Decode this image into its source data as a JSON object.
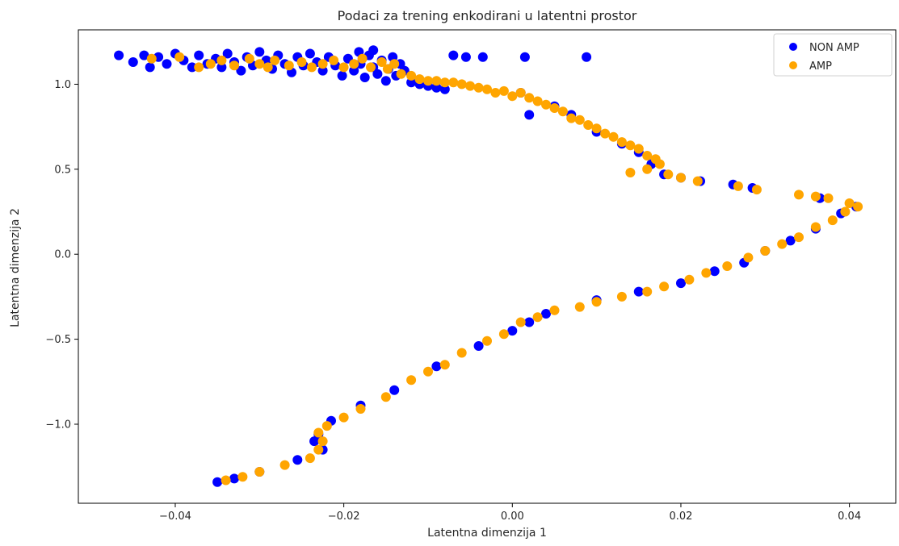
{
  "chart_data": {
    "type": "scatter",
    "title": "Podaci za trening enkodirani u latentni prostor",
    "xlabel": "Latentna dimenzija 1",
    "ylabel": "Latentna dimenzija 2",
    "xlim": [
      -0.0515,
      0.0455
    ],
    "ylim": [
      -1.465,
      1.32
    ],
    "xticks": [
      -0.04,
      -0.02,
      0.0,
      0.02,
      0.04
    ],
    "xtick_labels": [
      "−0.04",
      "−0.02",
      "0.00",
      "0.02",
      "0.04"
    ],
    "yticks": [
      -1.0,
      -0.5,
      0.0,
      0.5,
      1.0
    ],
    "ytick_labels": [
      "−1.0",
      "−0.5",
      "0.0",
      "0.5",
      "1.0"
    ],
    "grid": false,
    "legend_position": "top-right",
    "series": [
      {
        "name": "NON AMP",
        "color": "#0000ff",
        "points": [
          [
            -0.0467,
            1.17
          ],
          [
            -0.045,
            1.13
          ],
          [
            -0.0437,
            1.17
          ],
          [
            -0.043,
            1.1
          ],
          [
            -0.042,
            1.16
          ],
          [
            -0.041,
            1.12
          ],
          [
            -0.04,
            1.18
          ],
          [
            -0.039,
            1.14
          ],
          [
            -0.038,
            1.1
          ],
          [
            -0.0372,
            1.17
          ],
          [
            -0.0362,
            1.12
          ],
          [
            -0.0352,
            1.15
          ],
          [
            -0.0345,
            1.1
          ],
          [
            -0.0338,
            1.18
          ],
          [
            -0.033,
            1.13
          ],
          [
            -0.0322,
            1.08
          ],
          [
            -0.0315,
            1.16
          ],
          [
            -0.0308,
            1.11
          ],
          [
            -0.03,
            1.19
          ],
          [
            -0.0292,
            1.14
          ],
          [
            -0.0285,
            1.09
          ],
          [
            -0.0278,
            1.17
          ],
          [
            -0.027,
            1.12
          ],
          [
            -0.0262,
            1.07
          ],
          [
            -0.0255,
            1.16
          ],
          [
            -0.0248,
            1.11
          ],
          [
            -0.024,
            1.18
          ],
          [
            -0.0232,
            1.13
          ],
          [
            -0.0225,
            1.08
          ],
          [
            -0.0218,
            1.16
          ],
          [
            -0.021,
            1.11
          ],
          [
            -0.0202,
            1.05
          ],
          [
            -0.0195,
            1.15
          ],
          [
            -0.0188,
            1.08
          ],
          [
            -0.018,
            1.12
          ],
          [
            -0.0175,
            1.04
          ],
          [
            -0.017,
            1.17
          ],
          [
            -0.0165,
            1.1
          ],
          [
            -0.016,
            1.06
          ],
          [
            -0.0155,
            1.14
          ],
          [
            -0.015,
            1.02
          ],
          [
            -0.0147,
            1.09
          ],
          [
            -0.0142,
            1.16
          ],
          [
            -0.0138,
            1.05
          ],
          [
            -0.0133,
            1.12
          ],
          [
            -0.0128,
            1.08
          ],
          [
            -0.0165,
            1.2
          ],
          [
            -0.0182,
            1.19
          ],
          [
            -0.012,
            1.01
          ],
          [
            -0.011,
            1.0
          ],
          [
            -0.01,
            0.99
          ],
          [
            -0.009,
            0.98
          ],
          [
            -0.008,
            0.97
          ],
          [
            -0.007,
            1.17
          ],
          [
            -0.0055,
            1.16
          ],
          [
            -0.0035,
            1.16
          ],
          [
            0.0015,
            1.16
          ],
          [
            0.0088,
            1.16
          ],
          [
            0.001,
            0.95
          ],
          [
            0.002,
            0.82
          ],
          [
            0.005,
            0.87
          ],
          [
            0.007,
            0.82
          ],
          [
            0.01,
            0.72
          ],
          [
            0.013,
            0.65
          ],
          [
            0.015,
            0.6
          ],
          [
            0.017,
            0.55
          ],
          [
            0.0165,
            0.53
          ],
          [
            0.018,
            0.47
          ],
          [
            0.02,
            0.45
          ],
          [
            0.0223,
            0.43
          ],
          [
            0.0262,
            0.41
          ],
          [
            0.0285,
            0.39
          ],
          [
            0.0365,
            0.33
          ],
          [
            0.0408,
            0.28
          ],
          [
            0.039,
            0.24
          ],
          [
            0.036,
            0.15
          ],
          [
            0.033,
            0.08
          ],
          [
            0.03,
            0.02
          ],
          [
            0.0275,
            -0.05
          ],
          [
            0.024,
            -0.1
          ],
          [
            0.02,
            -0.17
          ],
          [
            0.015,
            -0.22
          ],
          [
            0.01,
            -0.27
          ],
          [
            0.004,
            -0.35
          ],
          [
            0.002,
            -0.4
          ],
          [
            0.0,
            -0.45
          ],
          [
            -0.004,
            -0.54
          ],
          [
            -0.009,
            -0.66
          ],
          [
            -0.014,
            -0.8
          ],
          [
            -0.018,
            -0.89
          ],
          [
            -0.0215,
            -0.98
          ],
          [
            -0.023,
            -1.06
          ],
          [
            -0.0235,
            -1.1
          ],
          [
            -0.0225,
            -1.15
          ],
          [
            -0.0255,
            -1.21
          ],
          [
            -0.03,
            -1.28
          ],
          [
            -0.035,
            -1.34
          ],
          [
            -0.033,
            -1.32
          ]
        ]
      },
      {
        "name": "AMP",
        "color": "#ffa500",
        "points": [
          [
            -0.0428,
            1.15
          ],
          [
            -0.0395,
            1.16
          ],
          [
            -0.0372,
            1.1
          ],
          [
            -0.0358,
            1.12
          ],
          [
            -0.0345,
            1.14
          ],
          [
            -0.033,
            1.11
          ],
          [
            -0.0312,
            1.15
          ],
          [
            -0.03,
            1.12
          ],
          [
            -0.029,
            1.1
          ],
          [
            -0.0282,
            1.14
          ],
          [
            -0.0265,
            1.11
          ],
          [
            -0.025,
            1.13
          ],
          [
            -0.0238,
            1.1
          ],
          [
            -0.0225,
            1.12
          ],
          [
            -0.0212,
            1.14
          ],
          [
            -0.02,
            1.1
          ],
          [
            -0.0188,
            1.12
          ],
          [
            -0.0178,
            1.15
          ],
          [
            -0.0168,
            1.1
          ],
          [
            -0.0155,
            1.13
          ],
          [
            -0.0148,
            1.09
          ],
          [
            -0.014,
            1.12
          ],
          [
            -0.0132,
            1.06
          ],
          [
            -0.012,
            1.05
          ],
          [
            -0.011,
            1.03
          ],
          [
            -0.01,
            1.02
          ],
          [
            -0.009,
            1.02
          ],
          [
            -0.008,
            1.01
          ],
          [
            -0.007,
            1.01
          ],
          [
            -0.006,
            1.0
          ],
          [
            -0.005,
            0.99
          ],
          [
            -0.004,
            0.98
          ],
          [
            -0.003,
            0.97
          ],
          [
            -0.002,
            0.95
          ],
          [
            -0.001,
            0.96
          ],
          [
            0.0,
            0.93
          ],
          [
            0.001,
            0.95
          ],
          [
            0.002,
            0.92
          ],
          [
            0.003,
            0.9
          ],
          [
            0.004,
            0.88
          ],
          [
            0.005,
            0.86
          ],
          [
            0.006,
            0.84
          ],
          [
            0.007,
            0.8
          ],
          [
            0.008,
            0.79
          ],
          [
            0.009,
            0.76
          ],
          [
            0.01,
            0.74
          ],
          [
            0.011,
            0.71
          ],
          [
            0.012,
            0.69
          ],
          [
            0.013,
            0.66
          ],
          [
            0.014,
            0.64
          ],
          [
            0.015,
            0.62
          ],
          [
            0.016,
            0.58
          ],
          [
            0.017,
            0.56
          ],
          [
            0.0175,
            0.53
          ],
          [
            0.016,
            0.5
          ],
          [
            0.014,
            0.48
          ],
          [
            0.0185,
            0.47
          ],
          [
            0.02,
            0.45
          ],
          [
            0.022,
            0.43
          ],
          [
            0.0268,
            0.4
          ],
          [
            0.029,
            0.38
          ],
          [
            0.034,
            0.35
          ],
          [
            0.036,
            0.34
          ],
          [
            0.0375,
            0.33
          ],
          [
            0.04,
            0.3
          ],
          [
            0.041,
            0.28
          ],
          [
            0.0395,
            0.25
          ],
          [
            0.038,
            0.2
          ],
          [
            0.036,
            0.16
          ],
          [
            0.034,
            0.1
          ],
          [
            0.032,
            0.06
          ],
          [
            0.03,
            0.02
          ],
          [
            0.028,
            -0.02
          ],
          [
            0.0255,
            -0.07
          ],
          [
            0.023,
            -0.11
          ],
          [
            0.021,
            -0.15
          ],
          [
            0.018,
            -0.19
          ],
          [
            0.016,
            -0.22
          ],
          [
            0.013,
            -0.25
          ],
          [
            0.01,
            -0.28
          ],
          [
            0.008,
            -0.31
          ],
          [
            0.005,
            -0.33
          ],
          [
            0.003,
            -0.37
          ],
          [
            0.001,
            -0.4
          ],
          [
            -0.001,
            -0.47
          ],
          [
            -0.003,
            -0.51
          ],
          [
            -0.006,
            -0.58
          ],
          [
            -0.008,
            -0.65
          ],
          [
            -0.01,
            -0.69
          ],
          [
            -0.012,
            -0.74
          ],
          [
            -0.015,
            -0.84
          ],
          [
            -0.018,
            -0.91
          ],
          [
            -0.02,
            -0.96
          ],
          [
            -0.022,
            -1.01
          ],
          [
            -0.023,
            -1.05
          ],
          [
            -0.0225,
            -1.1
          ],
          [
            -0.023,
            -1.15
          ],
          [
            -0.024,
            -1.2
          ],
          [
            -0.027,
            -1.24
          ],
          [
            -0.03,
            -1.28
          ],
          [
            -0.032,
            -1.31
          ],
          [
            -0.034,
            -1.33
          ]
        ]
      }
    ]
  }
}
